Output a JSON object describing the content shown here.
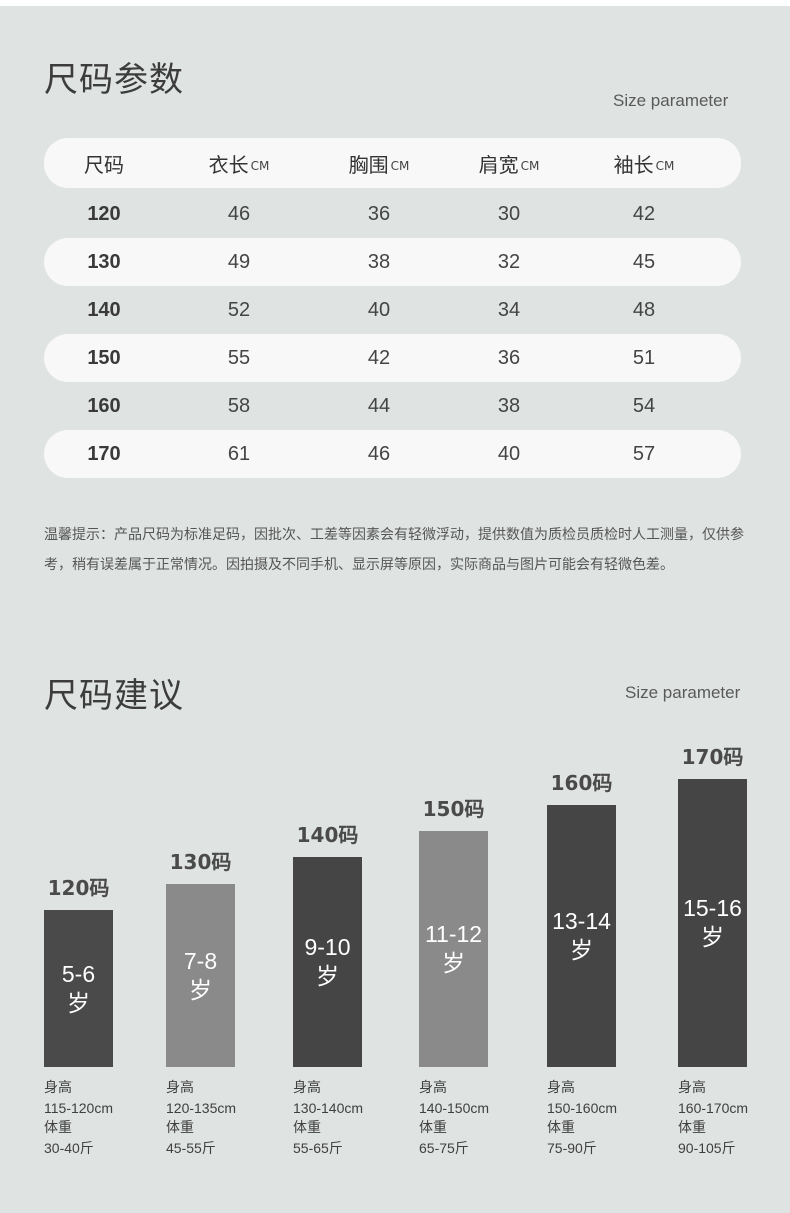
{
  "section1": {
    "title": "尺码参数",
    "subtitle": "Size parameter",
    "headers": [
      {
        "label": "尺码",
        "unit": ""
      },
      {
        "label": "衣长",
        "unit": "CM"
      },
      {
        "label": "胸围",
        "unit": "CM"
      },
      {
        "label": "肩宽",
        "unit": "CM"
      },
      {
        "label": "袖长",
        "unit": "CM"
      }
    ],
    "rows": [
      [
        "120",
        "46",
        "36",
        "30",
        "42"
      ],
      [
        "130",
        "49",
        "38",
        "32",
        "45"
      ],
      [
        "140",
        "52",
        "40",
        "34",
        "48"
      ],
      [
        "150",
        "55",
        "42",
        "36",
        "51"
      ],
      [
        "160",
        "58",
        "44",
        "38",
        "54"
      ],
      [
        "170",
        "61",
        "46",
        "40",
        "57"
      ]
    ],
    "note": "温馨提示：产品尺码为标准足码，因批次、工差等因素会有轻微浮动，提供数值为质检员质检时人工测量，仅供参考，稍有误差属于正常情况。因拍摄及不同手机、显示屏等原因，实际商品与图片可能会有轻微色差。"
  },
  "section2": {
    "title": "尺码建议",
    "subtitle": "Size parameter"
  },
  "chart_data": {
    "type": "bar",
    "categories": [
      "120码",
      "130码",
      "140码",
      "150码",
      "160码",
      "170码"
    ],
    "age_labels": [
      [
        "5-6",
        "岁"
      ],
      [
        "7-8",
        "岁"
      ],
      [
        "9-10",
        "岁"
      ],
      [
        "11-12",
        "岁"
      ],
      [
        "13-14",
        "岁"
      ],
      [
        "15-16",
        "岁"
      ]
    ],
    "height_label": "身高",
    "weight_label": "体重",
    "heights": [
      "115-120cm",
      "120-135cm",
      "130-140cm",
      "140-150cm",
      "150-160cm",
      "160-170cm"
    ],
    "weights": [
      "30-40斤",
      "45-55斤",
      "55-65斤",
      "65-75斤",
      "75-90斤",
      "90-105斤"
    ],
    "values": [
      120,
      130,
      140,
      150,
      160,
      170
    ],
    "colors": [
      "#4a4a4a",
      "#8a8a8a",
      "#454545",
      "#8a8a8a",
      "#454545",
      "#454545"
    ],
    "ylim": [
      60,
      170
    ]
  }
}
